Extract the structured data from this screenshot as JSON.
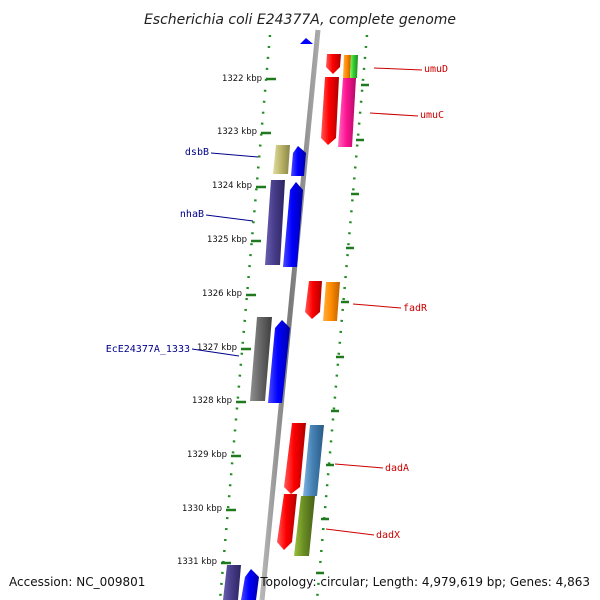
{
  "title": "Escherichia coli E24377A, complete genome",
  "accession": "Accession: NC_009801",
  "summary": "Topology: circular; Length: 4,979,619 bp; Genes: 4,863",
  "ticks": [
    "1322 kbp",
    "1323 kbp",
    "1324 kbp",
    "1325 kbp",
    "1326 kbp",
    "1327 kbp",
    "1328 kbp",
    "1329 kbp",
    "1330 kbp",
    "1331 kbp"
  ],
  "genes": {
    "umuD": "umuD",
    "umuC": "umuC",
    "dsbB": "dsbB",
    "nhaB": "nhaB",
    "fadR": "fadR",
    "ec1333": "EcE24377A_1333",
    "dadA": "dadA",
    "dadX": "dadX"
  },
  "colors": {
    "forward_label": "#cc0000",
    "reverse_label": "#00008b",
    "backbone": "#8a8a8a",
    "dotted_track": "#228b22",
    "forward_gene": "#ff0000",
    "reverse_gene": "#0000ff"
  }
}
